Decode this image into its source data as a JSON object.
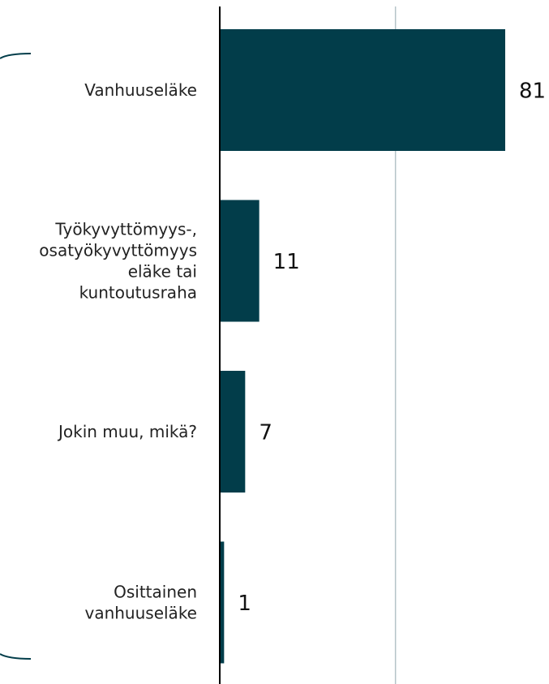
{
  "chart_data": {
    "type": "bar",
    "orientation": "horizontal",
    "categories": [
      "Vanhuuseläke",
      "Työkyvyttömyys-,\nosatyökyvyttömyys\neläke tai\nkuntoutusraha",
      "Jokin muu, mikä?",
      "Osittainen\nvanhuuseläke"
    ],
    "values": [
      81,
      11,
      7,
      1
    ],
    "color": "#023d4a",
    "xlim": [
      0,
      90
    ],
    "xticks": [
      0,
      50
    ],
    "grid": true
  }
}
